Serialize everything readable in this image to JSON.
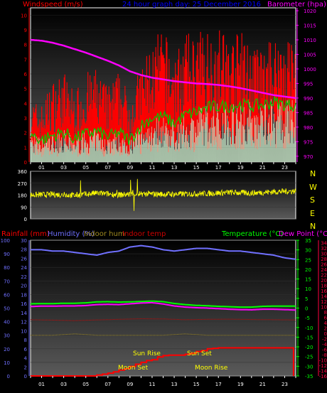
{
  "colors": {
    "wind_avg": "#00cc00",
    "wind_gust": "#ff0000",
    "wind_speed_label": "#ff0000",
    "barometer": "#ff00ff",
    "header_title": "#0000ff",
    "direction": "#ffff00",
    "compass": "#ffff00",
    "rain": "#ff0000",
    "humidity": "#7070ff",
    "indoor_hum": "#a08a20",
    "indoor_temp": "#cc0000",
    "temperature": "#00ff00",
    "dew_point": "#ff00ff",
    "frame": "#ffffff",
    "axis_rain": "#7070ff",
    "axis_temp": "#00ff00",
    "axis_dew": "#ff0040"
  },
  "top": {
    "title_left": "Windspeed (m/s)",
    "title_mid": "24 hour graph day:  25 December 2016",
    "title_right": "Barometer (hpa)"
  },
  "compass_letters": [
    "N",
    "W",
    "S",
    "E",
    "N"
  ],
  "bottom": {
    "label_rain": "Rainfall (mm)",
    "label_hum": "Humidity (%)",
    "label_indoor_hum": "Indoor hum",
    "label_indoor_temp": "Indoor temp",
    "label_temp": "Temperature (°C)",
    "label_dew": "Dew Point (°C)"
  },
  "astro": {
    "sun_rise": "Sun Rise",
    "sun_set": "Sun Set",
    "moon_set": "Moon Set",
    "moon_rise": "Moon Rise"
  },
  "chart_data": [
    {
      "type": "line",
      "title": "24 hour graph day:  25 December 2016",
      "x_ticks": [
        "01",
        "03",
        "05",
        "07",
        "09",
        "11",
        "13",
        "15",
        "17",
        "19",
        "21",
        "23"
      ],
      "xlim_hours": [
        0,
        24
      ],
      "y_left": {
        "label": "Windspeed (m/s)",
        "ylim": [
          0,
          10.5
        ],
        "ticks": [
          "0",
          "1",
          "2",
          "3",
          "4",
          "5",
          "6",
          "7",
          "8",
          "9",
          "10"
        ]
      },
      "y_right": {
        "label": "Barometer (hpa)",
        "ylim": [
          968,
          1021
        ],
        "ticks": [
          "970",
          "975",
          "980",
          "985",
          "990",
          "995",
          "1000",
          "1005",
          "1010",
          "1015",
          "1020"
        ]
      },
      "series": [
        {
          "name": "",
          "axis": "right",
          "x": [
            0,
            1,
            2,
            3,
            4,
            5,
            6,
            7,
            8,
            9,
            10,
            11,
            12,
            13,
            14,
            15,
            16,
            17,
            18,
            19,
            20,
            21,
            22,
            23,
            24
          ],
          "values": [
            1010.0,
            1009.7,
            1009.0,
            1008.0,
            1006.8,
            1005.6,
            1004.2,
            1002.8,
            1001.2,
            999.2,
            997.9,
            997.0,
            996.4,
            995.8,
            995.4,
            995.0,
            994.8,
            994.5,
            994.0,
            993.4,
            992.6,
            991.8,
            991.0,
            990.5,
            990.0
          ]
        },
        {
          "name": "",
          "axis": "left",
          "x": [
            0,
            1,
            2,
            3,
            4,
            5,
            6,
            7,
            8,
            9,
            10,
            11,
            12,
            13,
            14,
            15,
            16,
            17,
            18,
            19,
            20,
            21,
            22,
            23,
            24
          ],
          "values": [
            1.9,
            1.5,
            1.8,
            2.0,
            1.6,
            1.9,
            2.1,
            1.7,
            2.0,
            1.5,
            2.5,
            3.0,
            3.1,
            2.6,
            3.2,
            3.4,
            3.7,
            3.8,
            3.8,
            3.9,
            3.8,
            3.9,
            4.1,
            3.9,
            3.9
          ]
        },
        {
          "name": "",
          "axis": "left",
          "x": [
            0,
            1,
            2,
            3,
            4,
            5,
            6,
            7,
            8,
            9,
            10,
            11,
            12,
            13,
            14,
            15,
            16,
            17,
            18,
            19,
            20,
            21,
            22,
            23,
            24
          ],
          "values": [
            4.3,
            4.0,
            5.6,
            6.3,
            4.8,
            6.1,
            6.4,
            5.2,
            6.3,
            4.5,
            6.7,
            8.3,
            9.1,
            7.4,
            8.7,
            8.9,
            9.2,
            9.4,
            8.6,
            9.0,
            8.1,
            7.7,
            8.6,
            9.3,
            8.4
          ]
        }
      ]
    },
    {
      "type": "scatter",
      "x_ticks": [],
      "xlim_hours": [
        0,
        24
      ],
      "y": {
        "ylim": [
          0,
          360
        ],
        "ticks": [
          "0",
          "90",
          "180",
          "270",
          "360"
        ]
      },
      "series": [
        {
          "name": "",
          "x": [
            0,
            2,
            4,
            6,
            8,
            10,
            12,
            14,
            16,
            18,
            20,
            22,
            24
          ],
          "values": [
            180,
            185,
            178,
            195,
            182,
            190,
            186,
            188,
            192,
            200,
            195,
            205,
            210
          ]
        }
      ]
    },
    {
      "type": "line",
      "x_ticks": [
        "01",
        "03",
        "05",
        "07",
        "09",
        "11",
        "13",
        "15",
        "17",
        "19",
        "21",
        "23"
      ],
      "xlim_hours": [
        0,
        24
      ],
      "y_left": {
        "label": "Humidity (%)",
        "ylim": [
          0,
          100
        ],
        "ticks": [
          "0",
          "10",
          "20",
          "30",
          "40",
          "50",
          "60",
          "70",
          "80",
          "90",
          "100"
        ]
      },
      "y_rain": {
        "label": "Rainfall (mm)",
        "ylim": [
          0,
          30
        ],
        "ticks": [
          "0",
          "2",
          "4",
          "6",
          "8",
          "10",
          "12",
          "14",
          "16",
          "18",
          "20",
          "22",
          "24",
          "26",
          "28",
          "30"
        ]
      },
      "y_temp": {
        "label": "Temperature (°C)",
        "ylim": [
          -35,
          35
        ],
        "ticks": [
          "-35",
          "-30",
          "-25",
          "-20",
          "-15",
          "-10",
          "-5",
          "0",
          "5",
          "10",
          "15",
          "20",
          "25",
          "30",
          "35"
        ]
      },
      "y_dew": {
        "label": "Dew Point (°C)",
        "ylim": [
          -16,
          35
        ],
        "ticks": [
          "-16",
          "-14",
          "-12",
          "-10",
          "-8",
          "-6",
          "-4",
          "-2",
          "0",
          "2",
          "4",
          "6",
          "8",
          "10",
          "12",
          "14",
          "16",
          "18",
          "20",
          "22",
          "24",
          "26",
          "28",
          "30",
          "32",
          "34"
        ]
      },
      "series": [
        {
          "name": "Humidity (%)",
          "x": [
            0,
            1,
            2,
            3,
            4,
            5,
            6,
            7,
            8,
            9,
            10,
            11,
            12,
            13,
            14,
            15,
            16,
            17,
            18,
            19,
            20,
            21,
            22,
            23,
            24
          ],
          "values": [
            93,
            93,
            92,
            92,
            91,
            90,
            89,
            91,
            92,
            95,
            96,
            95,
            93,
            92,
            93,
            94,
            94,
            93,
            92,
            92,
            91,
            90,
            89,
            87,
            86
          ]
        },
        {
          "name": "Temperature (°C)",
          "x": [
            0,
            1,
            2,
            3,
            4,
            5,
            6,
            7,
            8,
            9,
            10,
            11,
            12,
            13,
            14,
            15,
            16,
            17,
            18,
            19,
            20,
            21,
            22,
            23,
            24
          ],
          "values": [
            2.2,
            2.3,
            2.3,
            2.5,
            2.5,
            2.7,
            3.2,
            3.3,
            3.1,
            3.2,
            3.4,
            3.6,
            3.3,
            2.4,
            1.8,
            1.4,
            1.2,
            0.9,
            0.7,
            0.5,
            0.5,
            0.9,
            1.0,
            1.0,
            1.0
          ]
        },
        {
          "name": "Dew Point (°C)",
          "x": [
            0,
            1,
            2,
            3,
            4,
            5,
            6,
            7,
            8,
            9,
            10,
            11,
            12,
            13,
            14,
            15,
            16,
            17,
            18,
            19,
            20,
            21,
            22,
            23,
            24
          ],
          "values": [
            0.8,
            1.0,
            1.0,
            1.1,
            1.1,
            1.3,
            1.8,
            1.9,
            1.8,
            2.2,
            2.6,
            2.8,
            2.1,
            1.1,
            0.5,
            0.2,
            0.0,
            -0.3,
            -0.6,
            -0.8,
            -0.9,
            -0.6,
            -0.6,
            -0.8,
            -1.0
          ]
        },
        {
          "name": "Indoor temp",
          "x": [
            0,
            2,
            4,
            6,
            8,
            10,
            12,
            14,
            16,
            18,
            20,
            22,
            24
          ],
          "values": [
            -6.0,
            -6.2,
            -6.5,
            -6.1,
            -5.8,
            -5.5,
            -5.6,
            -6.0,
            -5.8,
            -5.7,
            -5.9,
            -6.0,
            -6.1
          ]
        },
        {
          "name": "Indoor hum",
          "x": [
            0,
            2,
            4,
            6,
            8,
            10,
            12,
            14,
            16,
            18,
            20,
            22,
            24
          ],
          "values": [
            30,
            30,
            31,
            30,
            30,
            30,
            30,
            31,
            30,
            30,
            30,
            30,
            30
          ]
        },
        {
          "name": "Rainfall (mm)",
          "x": [
            0,
            5.5,
            6.0,
            6.5,
            7.0,
            7.5,
            8.0,
            8.5,
            9.0,
            9.5,
            10.0,
            10.5,
            11.0,
            11.5,
            12.0,
            12.5,
            13.0,
            13.5,
            14.0,
            14.5,
            15.0,
            15.5,
            16.0,
            16.5,
            17.0,
            18.0,
            20.0,
            22.0,
            23.0,
            23.8
          ],
          "values": [
            0,
            0,
            0.2,
            0.4,
            0.6,
            0.9,
            1.3,
            1.6,
            2.1,
            2.6,
            3.0,
            3.4,
            3.6,
            4.2,
            4.5,
            4.6,
            4.6,
            4.6,
            4.8,
            5.0,
            5.4,
            5.6,
            6.0,
            6.1,
            6.2,
            6.2,
            6.2,
            6.2,
            6.2,
            0
          ]
        }
      ]
    }
  ]
}
